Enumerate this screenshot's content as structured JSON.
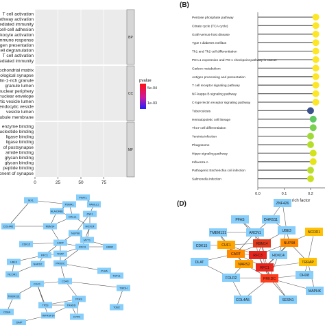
{
  "panelA": {
    "go_terms": [
      {
        "label": "T cell activation",
        "value": 91,
        "color": "#ee1111",
        "group": "BP"
      },
      {
        "label": "pathway activation",
        "value": 93,
        "color": "#ee1111",
        "group": "BP"
      },
      {
        "label": "mediated immunity",
        "value": 94,
        "color": "#ee1111",
        "group": "BP"
      },
      {
        "label": "cell-cell adhesion",
        "value": 70,
        "color": "#ee1111",
        "group": "BP"
      },
      {
        "label": "leukocyte activation",
        "value": 88,
        "color": "#ee1111",
        "group": "BP"
      },
      {
        "label": "immune response",
        "value": 90,
        "color": "#ee1111",
        "group": "BP"
      },
      {
        "label": "antigen presentation",
        "value": 75,
        "color": "#ee1111",
        "group": "BP"
      },
      {
        "label": "cell degranulation",
        "value": 88,
        "color": "#ee1111",
        "group": "BP"
      },
      {
        "label": "T cell activation",
        "value": 92,
        "color": "#ee1111",
        "group": "BP"
      },
      {
        "label": "mediated immunity",
        "value": 48,
        "color": "#ee1111",
        "group": "BP"
      },
      {
        "label": "mitochondrial matrix",
        "value": 56,
        "color": "#ee1111",
        "group": "CC"
      },
      {
        "label": "biological synapse",
        "value": 55,
        "color": "#ee1111",
        "group": "CC"
      },
      {
        "label": "ficolin-1-rich granule",
        "value": 42,
        "color": "#ee1111",
        "group": "CC"
      },
      {
        "label": "granule lumen",
        "value": 41,
        "color": "#ee1111",
        "group": "CC"
      },
      {
        "label": "nuclear periphery",
        "value": 38,
        "color": "#ee1111",
        "group": "CC"
      },
      {
        "label": "nuclear envelope",
        "value": 74,
        "color": "#ee1111",
        "group": "CC"
      },
      {
        "label": "lytic vesicle lumen",
        "value": 56,
        "color": "#ee1111",
        "group": "CC"
      },
      {
        "label": "endocytic vesicle",
        "value": 55,
        "color": "#ee1111",
        "group": "CC"
      },
      {
        "label": "vesicle lumen",
        "value": 54,
        "color": "#ee1111",
        "group": "CC"
      },
      {
        "label": "tubule membrane",
        "value": 52,
        "color": "#ee1111",
        "group": "CC"
      },
      {
        "label": "enzyme binding",
        "value": 55,
        "color": "#ee1111",
        "group": "MF"
      },
      {
        "label": "nucleotide binding",
        "value": 52,
        "color": "#ee1111",
        "group": "MF"
      },
      {
        "label": "ligase binding",
        "value": 47,
        "color": "#ee1111",
        "group": "MF"
      },
      {
        "label": "ligase binding",
        "value": 45,
        "color": "#e8102a",
        "group": "MF"
      },
      {
        "label": "of postsynapse",
        "value": 44,
        "color": "#e2123a",
        "group": "MF"
      },
      {
        "label": "amide binding",
        "value": 61,
        "color": "#d4145a",
        "group": "MF"
      },
      {
        "label": "glycan binding",
        "value": 54,
        "color": "#cc1660",
        "group": "MF"
      },
      {
        "label": "glycan binding",
        "value": 14,
        "color": "#a31aa8",
        "group": "MF"
      },
      {
        "label": "peptide binding",
        "value": 50,
        "color": "#7e1ed8",
        "group": "MF"
      },
      {
        "label": "component of synapse",
        "value": 6,
        "color": "#2222e6",
        "group": "MF"
      }
    ],
    "facets": [
      "BP",
      "CC",
      "MF"
    ],
    "x_ticks": [
      "0",
      "25",
      "50",
      "75"
    ],
    "x_tick_values": [
      0,
      25,
      50,
      75
    ],
    "x_max": 100,
    "legend": {
      "title": "pvalue",
      "labels": [
        "5e-04",
        "1e-03"
      ]
    }
  },
  "panelB": {
    "tag": "(B)",
    "pathways": [
      {
        "label": "Pentose phosphate pathway",
        "value": 0.22,
        "color": "#fde725"
      },
      {
        "label": "Citrate cycle (TCA cycle)",
        "value": 0.22,
        "color": "#fde725"
      },
      {
        "label": "Graft-versus-host disease",
        "value": 0.22,
        "color": "#fde725"
      },
      {
        "label": "Type I diabetes mellitus",
        "value": 0.22,
        "color": "#fde725"
      },
      {
        "label": "Th1 and Th2 cell differentiation",
        "value": 0.22,
        "color": "#fde725"
      },
      {
        "label": "PD-L1 expression and PD-1 checkpoint pathway in cancer",
        "value": 0.22,
        "color": "#fde725"
      },
      {
        "label": "Carbon metabolism",
        "value": 0.22,
        "color": "#fde725"
      },
      {
        "label": "Antigen processing and presentation",
        "value": 0.22,
        "color": "#fde725"
      },
      {
        "label": "T cell receptor signaling pathway",
        "value": 0.22,
        "color": "#fde725"
      },
      {
        "label": "NF-kappa B signaling pathway",
        "value": 0.22,
        "color": "#fde725"
      },
      {
        "label": "C-type lectin receptor signaling pathway",
        "value": 0.22,
        "color": "#fde725"
      },
      {
        "label": "Tuberculosis",
        "value": 0.2,
        "color": "#3b528b"
      },
      {
        "label": "Hematopoietic cell lineage",
        "value": 0.21,
        "color": "#5ec962"
      },
      {
        "label": "Th17 cell differentiation",
        "value": 0.21,
        "color": "#7ad151"
      },
      {
        "label": "Yersinia infection",
        "value": 0.2,
        "color": "#a0da39"
      },
      {
        "label": "Phagosome",
        "value": 0.2,
        "color": "#b5de2b"
      },
      {
        "label": "Hippo signaling pathway",
        "value": 0.21,
        "color": "#d2e21b"
      },
      {
        "label": "Influenza A",
        "value": 0.21,
        "color": "#e5e419"
      },
      {
        "label": "Pathogenic Escherichia coli infection",
        "value": 0.2,
        "color": "#b8de29"
      },
      {
        "label": "Salmonella infection",
        "value": 0.2,
        "color": "#c8e020"
      }
    ],
    "x_ticks": [
      "0.0",
      "0.1",
      "0.2"
    ],
    "x_tick_values": [
      0.0,
      0.1,
      0.2
    ],
    "x_range": [
      0.0,
      0.26
    ],
    "xlabel": "rich factor"
  },
  "panelC": {
    "nodes": [
      {
        "label": "MX1"
      },
      {
        "label": "PIMT1"
      },
      {
        "label": "PSMA1"
      },
      {
        "label": "VAMLL1"
      },
      {
        "label": "HLA-DRB1"
      },
      {
        "label": "ZNF1"
      },
      {
        "label": "DALL1"
      },
      {
        "label": "COL4A5"
      },
      {
        "label": "RBM14"
      },
      {
        "label": "HOXC4"
      },
      {
        "label": "MYT1"
      },
      {
        "label": "NUP98"
      },
      {
        "label": "CDK15"
      },
      {
        "label": "CART"
      },
      {
        "label": "RFC3"
      },
      {
        "label": "TRAP"
      },
      {
        "label": "RFC1"
      },
      {
        "label": "NARS2"
      },
      {
        "label": "PRKDC"
      },
      {
        "label": "GRB2"
      },
      {
        "label": "PLAA"
      },
      {
        "label": "UBE3"
      },
      {
        "label": "NCOR1"
      },
      {
        "label": "CD40"
      },
      {
        "label": "TSPL1"
      },
      {
        "label": "CGF1"
      },
      {
        "label": "PFAS"
      },
      {
        "label": "TMEM131"
      },
      {
        "label": "CYPC"
      },
      {
        "label": "TP53"
      },
      {
        "label": "TRADD"
      },
      {
        "label": "DAIP"
      },
      {
        "label": "TNFRSF14"
      },
      {
        "label": "CD8A"
      },
      {
        "label": "TIKDH"
      },
      {
        "label": "TOB2"
      }
    ]
  },
  "panelD": {
    "tag": "(D)",
    "nodes": [
      {
        "label": "ZNF426"
      },
      {
        "label": "PFAS"
      },
      {
        "label": "DHRS11"
      },
      {
        "label": "TMEM131"
      },
      {
        "label": "ARCN1"
      },
      {
        "label": "UBE3"
      },
      {
        "label": "NCOR1"
      },
      {
        "label": "CDK15"
      },
      {
        "label": "CUF1"
      },
      {
        "label": "RBM14"
      },
      {
        "label": "NUP98"
      },
      {
        "label": "DLAT"
      },
      {
        "label": "CART"
      },
      {
        "label": "RFC3"
      },
      {
        "label": "HOXC4"
      },
      {
        "label": "TRRAP"
      },
      {
        "label": "NARS2"
      },
      {
        "label": "RFC1"
      },
      {
        "label": "DHX8"
      },
      {
        "label": "FOLR2"
      },
      {
        "label": "PRKDC"
      },
      {
        "label": "COL4A5"
      },
      {
        "label": "MAPHK"
      },
      {
        "label": "SESN1"
      }
    ]
  }
}
